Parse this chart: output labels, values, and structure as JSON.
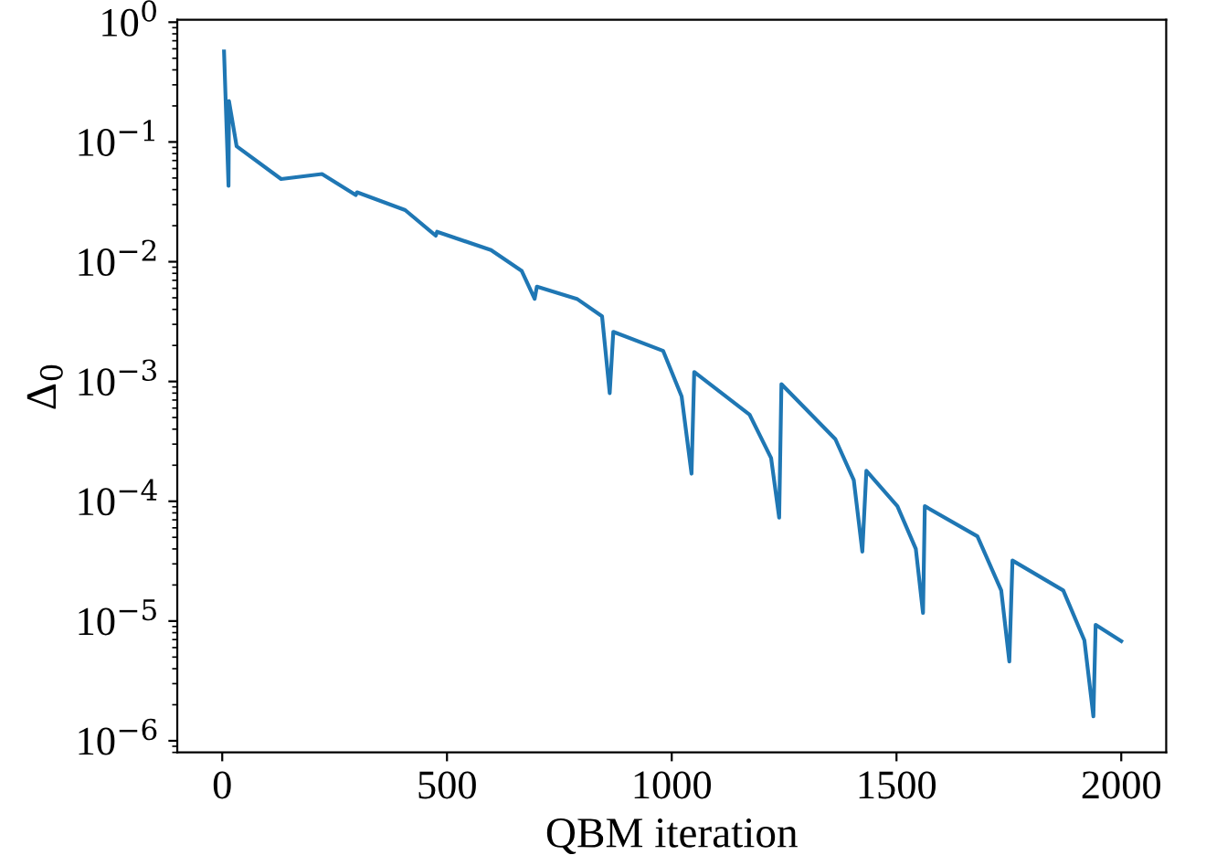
{
  "chart_data": {
    "type": "line",
    "xlabel": "QBM iteration",
    "ylabel": "Δ$_{0}$",
    "log": "y",
    "grid": false,
    "legend": false,
    "xlim": [
      -100,
      2100
    ],
    "xticks": [
      0,
      500,
      1000,
      1500,
      2000
    ],
    "ylim": [
      8e-07,
      1.05
    ],
    "yticks": [
      {
        "value": 1e-06,
        "label": "10$^{−6}$"
      },
      {
        "value": 1e-05,
        "label": "10$^{−5}$"
      },
      {
        "value": 0.0001,
        "label": "10$^{−4}$"
      },
      {
        "value": 0.001,
        "label": "10$^{−3}$"
      },
      {
        "value": 0.01,
        "label": "10$^{−2}$"
      },
      {
        "value": 0.1,
        "label": "10$^{−1}$"
      },
      {
        "value": 1,
        "label": "10$^{0}$"
      }
    ],
    "series": [
      {
        "color": "#1f77b4",
        "x": [
          4,
          14,
          15,
          32,
          131,
          222,
          297,
          300,
          407,
          475,
          478,
          598,
          666,
          695,
          700,
          789,
          845,
          862,
          870,
          981,
          1022,
          1044,
          1050,
          1173,
          1221,
          1239,
          1244,
          1364,
          1405,
          1424,
          1433,
          1502,
          1543,
          1559,
          1563,
          1680,
          1733,
          1751,
          1758,
          1871,
          1918,
          1938,
          1943,
          2000
        ],
        "values": [
          0.57,
          0.043,
          0.22,
          0.092,
          0.049,
          0.054,
          0.036,
          0.038,
          0.027,
          0.0165,
          0.0178,
          0.0125,
          0.0084,
          0.0049,
          0.0062,
          0.0049,
          0.0035,
          0.0008,
          0.0026,
          0.0018,
          0.00075,
          0.00017,
          0.0012,
          0.00053,
          0.00023,
          7.3e-05,
          0.00095,
          0.00033,
          0.00015,
          3.8e-05,
          0.00018,
          9.1e-05,
          4e-05,
          1.17e-05,
          9.1e-05,
          5.1e-05,
          1.8e-05,
          4.6e-06,
          3.2e-05,
          1.8e-05,
          6.9e-06,
          1.6e-06,
          9.3e-06,
          6.8e-06
        ]
      }
    ]
  }
}
